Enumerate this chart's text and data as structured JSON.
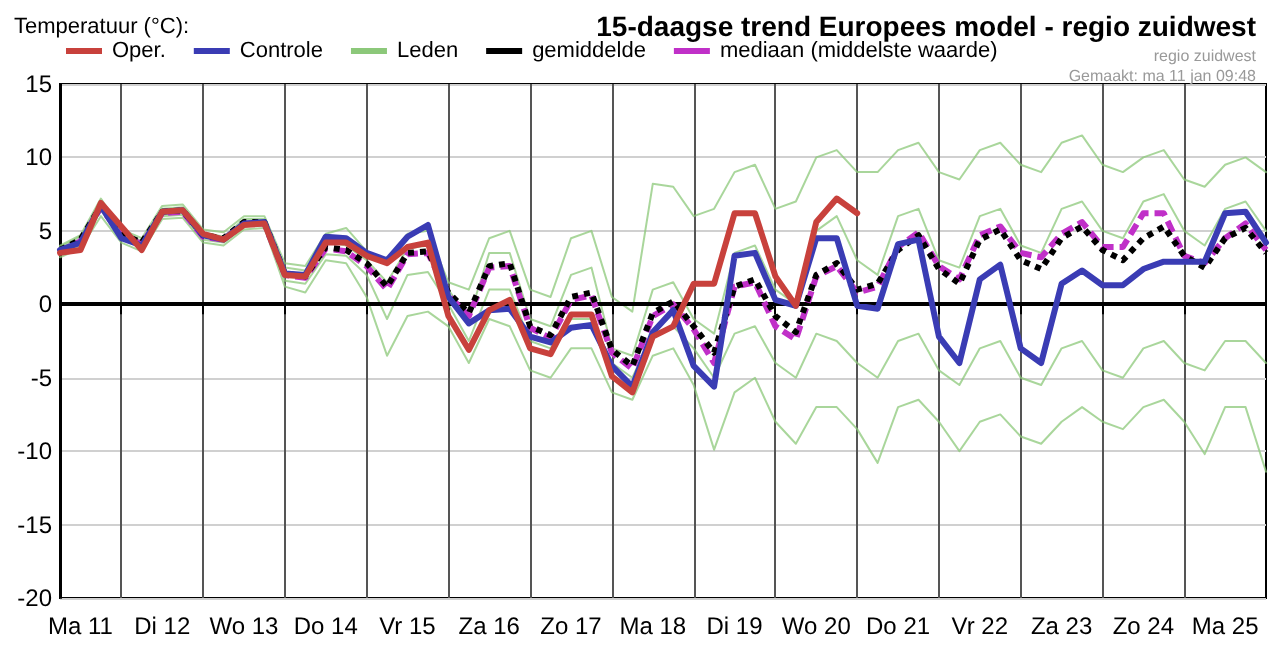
{
  "chart_data": {
    "type": "line",
    "title": "15-daagse trend Europees model - regio zuidwest",
    "ylabel": "Temperatuur (°C):",
    "annotations": [
      "regio zuidwest",
      "Gemaakt: ma 11 jan 09:48"
    ],
    "categories": [
      null,
      "Ma 11",
      null,
      null,
      null,
      "Di 12",
      null,
      null,
      null,
      "Wo 13",
      null,
      null,
      null,
      "Do 14",
      null,
      null,
      null,
      "Vr 15",
      null,
      null,
      null,
      "Za 16",
      null,
      null,
      null,
      "Zo 17",
      null,
      null,
      null,
      "Ma 18",
      null,
      null,
      null,
      "Di 19",
      null,
      null,
      null,
      "Wo 20",
      null,
      null,
      null,
      "Do 21",
      null,
      null,
      null,
      "Vr 22",
      null,
      null,
      null,
      "Za 23",
      null,
      null,
      null,
      "Zo 24",
      null,
      null,
      null,
      "Ma 25",
      null,
      null
    ],
    "ylim": [
      -20,
      15
    ],
    "yticks": [
      -20,
      -15,
      -10,
      -5,
      0,
      5,
      10,
      15
    ],
    "grid": true,
    "legend": "top",
    "marker": "none",
    "ref_lines": [
      {
        "axis": "y",
        "value": 0,
        "color": "#000000"
      }
    ],
    "series": [
      {
        "name": "Oper.",
        "color": "#c8413c",
        "line_style": "solid",
        "values": [
          3.5,
          3.7,
          6.9,
          5.3,
          3.7,
          6.3,
          6.4,
          4.8,
          4.4,
          5.4,
          5.5,
          2.0,
          1.9,
          4.2,
          4.2,
          3.3,
          2.8,
          3.9,
          4.2,
          -0.8,
          -3.1,
          -0.4,
          0.3,
          -3.0,
          -3.4,
          -0.7,
          -0.7,
          -4.9,
          -6.0,
          -2.2,
          -1.5,
          1.4,
          1.4,
          6.2,
          6.2,
          1.9,
          -0.1,
          5.6,
          7.2,
          6.2,
          null,
          null,
          null,
          null,
          null,
          null,
          null,
          null,
          null,
          null,
          null,
          null,
          null,
          null,
          null,
          null,
          null,
          null,
          null,
          null
        ]
      },
      {
        "name": "Controle",
        "color": "#3a3cb4",
        "line_style": "solid",
        "values": [
          3.7,
          4.2,
          6.7,
          4.5,
          4.0,
          6.3,
          6.4,
          4.7,
          4.4,
          5.5,
          5.6,
          2.1,
          2.0,
          4.6,
          4.5,
          3.5,
          3.0,
          4.6,
          5.4,
          0.5,
          -1.3,
          -0.4,
          -0.3,
          -2.2,
          -2.6,
          -1.6,
          -1.4,
          -4.2,
          -5.6,
          -1.9,
          -0.4,
          -4.2,
          -5.6,
          3.3,
          3.5,
          0.3,
          -0.1,
          4.5,
          4.5,
          -0.1,
          -0.3,
          4.1,
          4.4,
          -2.2,
          -4.0,
          1.7,
          2.7,
          -3.0,
          -4.0,
          1.4,
          2.3,
          1.3,
          1.3,
          2.4,
          2.9,
          2.9,
          2.9,
          6.2,
          6.3,
          4.2
        ]
      },
      {
        "name": "Leden",
        "color": "#8cc87a",
        "line_style": "solid",
        "values": [
          4.0,
          4.7,
          7.2,
          5.1,
          4.5,
          6.7,
          6.8,
          5.1,
          4.9,
          6.0,
          6.0,
          2.8,
          2.6,
          4.8,
          5.2,
          3.6,
          3.0,
          4.8,
          5.0,
          1.5,
          1.0,
          4.5,
          5.0,
          1.0,
          0.5,
          4.5,
          5.0,
          0.5,
          -0.5,
          8.2,
          8.0,
          6.0,
          6.5,
          9.0,
          9.5,
          6.5,
          7.0,
          10.0,
          10.5,
          9.0,
          9.0,
          10.5,
          11.0,
          9.0,
          8.5,
          10.5,
          11.0,
          9.5,
          9.0,
          11.0,
          11.5,
          9.5,
          9.0,
          10.0,
          10.5,
          8.5,
          8.0,
          9.5,
          10.0,
          9.0
        ]
      },
      {
        "name": "gemiddelde",
        "color": "#000000",
        "line_style": "dotted",
        "values": [
          3.7,
          4.4,
          6.7,
          4.8,
          4.2,
          6.3,
          6.4,
          4.7,
          4.5,
          5.6,
          5.6,
          2.1,
          1.9,
          3.9,
          3.7,
          2.8,
          1.2,
          3.5,
          3.6,
          0.8,
          -0.6,
          2.6,
          2.8,
          -1.5,
          -2.1,
          0.5,
          0.8,
          -3.1,
          -4.2,
          -0.6,
          0.2,
          -1.5,
          -3.3,
          1.2,
          1.7,
          -0.8,
          -1.9,
          2.0,
          2.8,
          1.0,
          1.4,
          3.7,
          4.7,
          2.4,
          1.4,
          4.4,
          5.1,
          3.0,
          2.4,
          4.5,
          5.3,
          3.7,
          3.0,
          4.5,
          5.3,
          3.3,
          2.5,
          4.5,
          5.2,
          3.5
        ]
      },
      {
        "name": "mediaan (middelste waarde)",
        "color": "#c030c8",
        "line_style": "dashed",
        "values": [
          3.6,
          4.3,
          6.6,
          4.7,
          4.1,
          6.2,
          6.3,
          4.6,
          4.4,
          5.5,
          5.5,
          2.0,
          1.8,
          3.8,
          3.6,
          2.6,
          1.0,
          3.4,
          3.5,
          0.6,
          -0.8,
          2.5,
          2.6,
          -1.6,
          -2.3,
          0.3,
          0.6,
          -3.3,
          -4.4,
          -0.8,
          0.0,
          -1.7,
          -4.0,
          1.2,
          1.5,
          -1.5,
          -2.4,
          1.9,
          2.6,
          0.8,
          1.2,
          3.9,
          4.9,
          2.6,
          1.7,
          4.7,
          5.3,
          3.5,
          3.2,
          4.8,
          5.6,
          3.9,
          3.9,
          6.2,
          6.2,
          3.3,
          2.8,
          4.5,
          5.5,
          3.7
        ]
      },
      {
        "color": "#8cc87a",
        "line_style": "solid",
        "values": [
          3.2,
          3.8,
          6.0,
          4.2,
          3.6,
          5.8,
          5.9,
          4.2,
          4.0,
          5.1,
          5.2,
          1.2,
          0.8,
          3.0,
          2.8,
          0.5,
          -3.5,
          -0.8,
          -0.5,
          -1.5,
          -4.0,
          -1.0,
          -1.5,
          -4.5,
          -5.0,
          -3.0,
          -3.0,
          -6.0,
          -6.5,
          -3.5,
          -3.0,
          -5.5,
          -9.9,
          -6.0,
          -5.0,
          -8.0,
          -9.5,
          -7.0,
          -7.0,
          -8.5,
          -10.8,
          -7.0,
          -6.5,
          -8.0,
          -10.0,
          -8.0,
          -7.5,
          -9.0,
          -9.5,
          -8.0,
          -7.0,
          -8.0,
          -8.5,
          -7.0,
          -6.5,
          -8.0,
          -10.2,
          -7.0,
          -7.0,
          -11.4
        ]
      },
      {
        "color": "#8cc87a",
        "line_style": "solid",
        "values": [
          3.9,
          4.6,
          7.0,
          5.0,
          4.3,
          6.5,
          6.6,
          4.9,
          4.6,
          5.8,
          5.8,
          2.5,
          2.3,
          4.3,
          4.0,
          3.0,
          1.5,
          3.8,
          4.0,
          1.0,
          -1.0,
          3.5,
          3.5,
          -1.0,
          -1.5,
          2.0,
          2.5,
          -3.0,
          -3.5,
          1.0,
          1.5,
          -1.0,
          -2.0,
          3.5,
          4.0,
          1.0,
          0.0,
          5.0,
          6.0,
          3.0,
          2.0,
          6.0,
          6.5,
          3.0,
          2.5,
          6.0,
          6.5,
          4.0,
          3.5,
          6.5,
          7.0,
          5.0,
          4.5,
          7.0,
          7.5,
          5.0,
          4.0,
          6.5,
          7.0,
          5.0
        ]
      },
      {
        "color": "#8cc87a",
        "line_style": "solid",
        "values": [
          3.4,
          4.0,
          6.4,
          4.5,
          3.9,
          6.0,
          6.1,
          4.4,
          4.2,
          5.3,
          5.4,
          1.6,
          1.4,
          3.4,
          3.3,
          2.0,
          -1.0,
          2.0,
          2.2,
          0.0,
          -2.5,
          1.0,
          1.0,
          -2.5,
          -3.0,
          -1.0,
          -1.0,
          -4.0,
          -5.0,
          -2.0,
          -1.5,
          -3.0,
          -5.0,
          -2.0,
          -1.5,
          -4.0,
          -5.0,
          -2.0,
          -2.5,
          -4.0,
          -5.0,
          -2.5,
          -2.0,
          -4.5,
          -5.5,
          -3.0,
          -2.5,
          -5.0,
          -5.5,
          -3.0,
          -2.5,
          -4.5,
          -5.0,
          -3.0,
          -2.5,
          -4.0,
          -4.5,
          -2.5,
          -2.5,
          -4.0
        ]
      }
    ]
  }
}
